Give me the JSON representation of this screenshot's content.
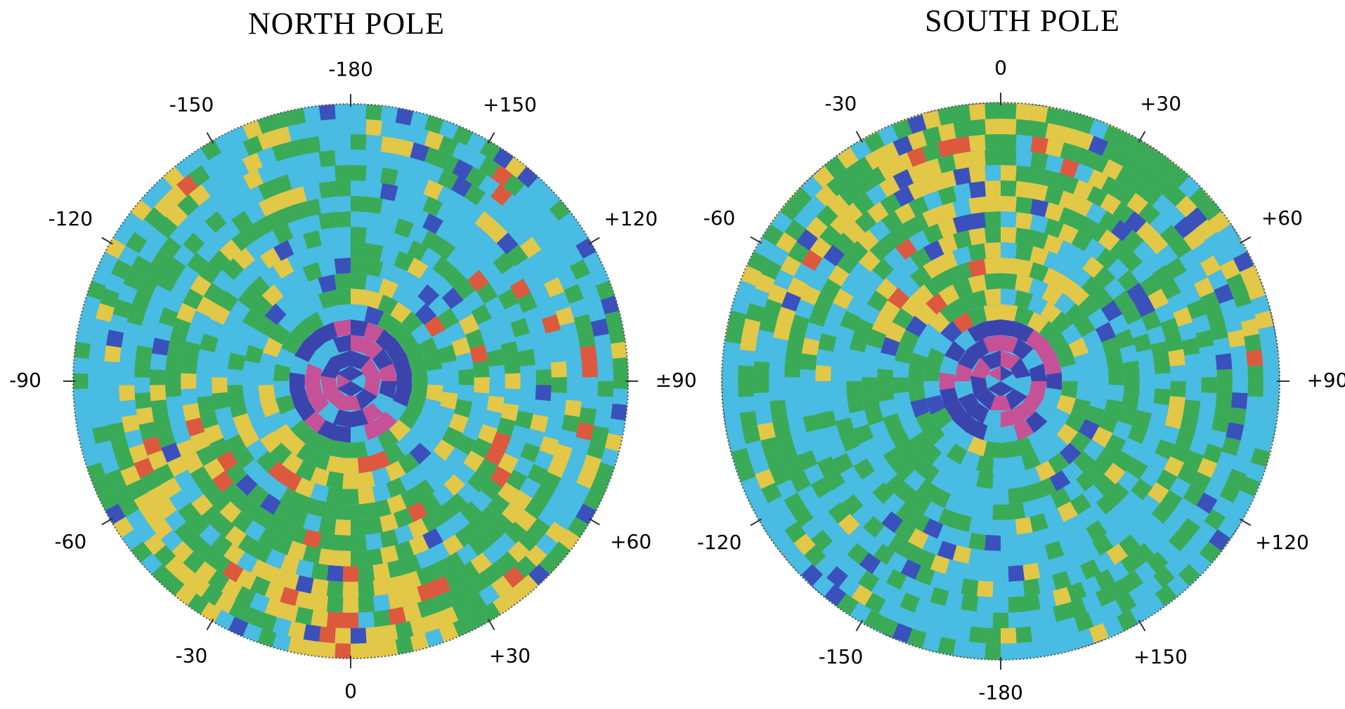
{
  "panels": [
    {
      "title": "NORTH POLE",
      "labels": [
        "-180",
        "+150",
        "+120",
        "±90",
        "+60",
        "+30",
        "0",
        "-30",
        "-60",
        "-90",
        "-120",
        "-150"
      ]
    },
    {
      "title": "SOUTH POLE",
      "labels": [
        "0",
        "+30",
        "+60",
        "+90",
        "+120",
        "+150",
        "-180",
        "-150",
        "-120",
        "-60",
        "-30"
      ]
    }
  ]
}
